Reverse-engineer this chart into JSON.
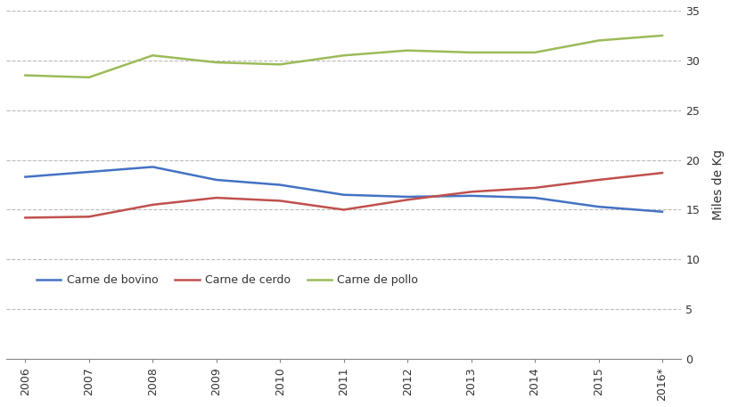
{
  "years": [
    "2006",
    "2007",
    "2008",
    "2009",
    "2010",
    "2011",
    "2012",
    "2013",
    "2014",
    "2015",
    "2016*"
  ],
  "bovino": [
    18.3,
    18.8,
    19.3,
    18.0,
    17.5,
    16.5,
    16.3,
    16.4,
    16.2,
    15.3,
    14.8
  ],
  "cerdo": [
    14.2,
    14.3,
    15.5,
    16.2,
    15.9,
    15.0,
    16.0,
    16.8,
    17.2,
    18.0,
    18.7
  ],
  "pollo": [
    28.5,
    28.3,
    30.5,
    29.8,
    29.6,
    30.5,
    31.0,
    30.8,
    30.8,
    32.0,
    32.5
  ],
  "color_bovino": "#4472C4",
  "color_cerdo": "#C0504D",
  "color_pollo": "#9BBB59",
  "ylabel": "Miles de Kg",
  "ylim": [
    0,
    35
  ],
  "yticks": [
    0,
    5,
    10,
    15,
    20,
    25,
    30,
    35
  ],
  "legend_labels": [
    "Carne de bovino",
    "Carne de cerdo",
    "Carne de pollo"
  ],
  "background_color": "#FFFFFF",
  "grid_color": "#BBBBBB",
  "line_width": 1.8
}
